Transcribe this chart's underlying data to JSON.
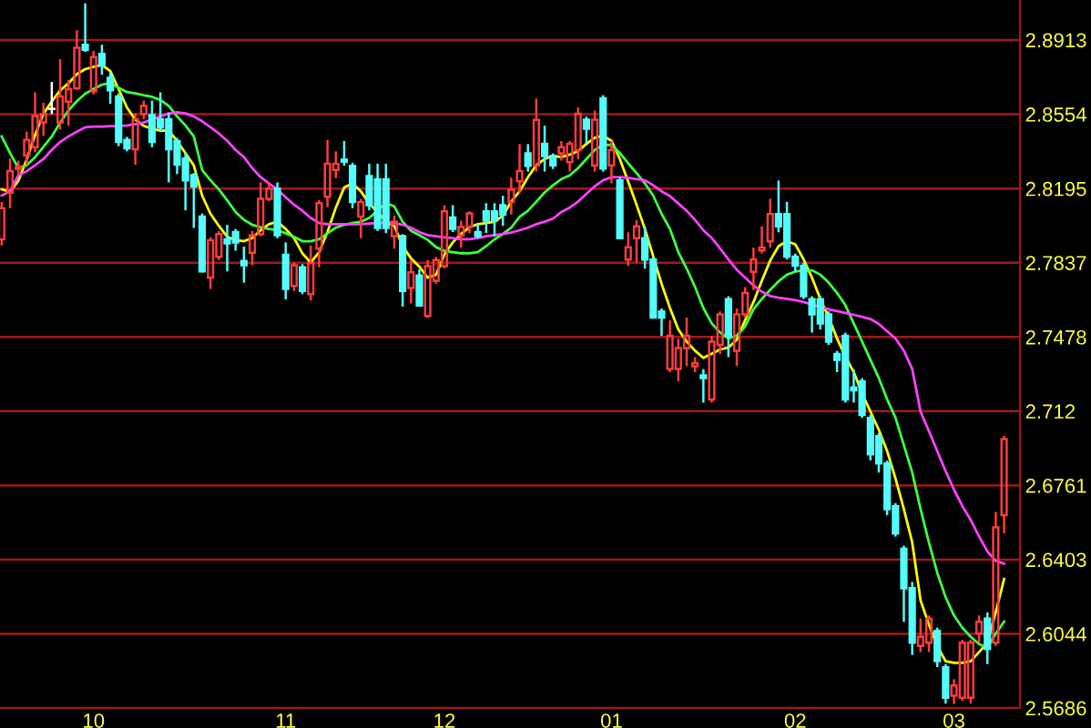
{
  "chart_data": {
    "type": "candlestick",
    "categories": [
      null,
      null,
      null,
      null,
      null,
      null,
      null,
      null,
      null,
      null,
      null,
      "10",
      null,
      null,
      null,
      null,
      null,
      null,
      null,
      null,
      null,
      null,
      null,
      null,
      null,
      null,
      null,
      null,
      null,
      null,
      null,
      null,
      null,
      null,
      "11",
      null,
      null,
      null,
      null,
      null,
      null,
      null,
      null,
      null,
      null,
      null,
      null,
      null,
      null,
      null,
      null,
      null,
      null,
      "12",
      null,
      null,
      null,
      null,
      null,
      null,
      null,
      null,
      null,
      null,
      null,
      null,
      null,
      null,
      null,
      null,
      null,
      null,
      null,
      "01",
      null,
      null,
      null,
      null,
      null,
      null,
      null,
      null,
      null,
      null,
      null,
      null,
      null,
      null,
      null,
      null,
      null,
      null,
      null,
      null,
      null,
      "02",
      null,
      null,
      null,
      null,
      null,
      null,
      null,
      null,
      null,
      null,
      null,
      null,
      null,
      null,
      null,
      null,
      null,
      null,
      "03",
      null,
      null,
      null,
      null,
      null,
      null
    ],
    "ohlc": [
      [
        2.795,
        2.813,
        2.792,
        2.81
      ],
      [
        2.8175,
        2.834,
        2.81,
        2.828
      ],
      [
        2.829,
        2.833,
        2.826,
        2.83
      ],
      [
        2.8355,
        2.847,
        2.831,
        2.843
      ],
      [
        2.8395,
        2.866,
        2.837,
        2.8545
      ],
      [
        2.8515,
        2.861,
        2.845,
        2.8555
      ],
      [
        2.858,
        2.871,
        2.8555,
        2.858
      ],
      [
        2.8515,
        2.882,
        2.848,
        2.864
      ],
      [
        2.8615,
        2.872,
        2.85,
        2.8675
      ],
      [
        2.868,
        2.896,
        2.867,
        2.8875
      ],
      [
        2.889,
        2.909,
        2.8855,
        2.8865
      ],
      [
        2.8665,
        2.886,
        2.865,
        2.883
      ],
      [
        2.8845,
        2.889,
        2.8745,
        2.879
      ],
      [
        2.873,
        2.8755,
        2.8605,
        2.867
      ],
      [
        2.864,
        2.8655,
        2.84,
        2.842
      ],
      [
        2.843,
        2.8445,
        2.8375,
        2.839
      ],
      [
        2.8385,
        2.856,
        2.831,
        2.853
      ],
      [
        2.8555,
        2.862,
        2.853,
        2.8595
      ],
      [
        2.855,
        2.862,
        2.8395,
        2.842
      ],
      [
        2.853,
        2.866,
        2.847,
        2.849
      ],
      [
        2.853,
        2.856,
        2.8225,
        2.8385
      ],
      [
        2.8425,
        2.844,
        2.8265,
        2.831
      ],
      [
        2.834,
        2.837,
        2.809,
        2.8235
      ],
      [
        2.826,
        2.827,
        2.8005,
        2.8205
      ],
      [
        2.806,
        2.8075,
        2.779,
        2.7795
      ],
      [
        2.7765,
        2.796,
        2.771,
        2.7945
      ],
      [
        2.7865,
        2.799,
        2.785,
        2.7975
      ],
      [
        2.795,
        2.802,
        2.7795,
        2.793
      ],
      [
        2.7985,
        2.8,
        2.7895,
        2.7935
      ],
      [
        2.7845,
        2.7915,
        2.774,
        2.7825
      ],
      [
        2.7885,
        2.799,
        2.7825,
        2.797
      ],
      [
        2.7975,
        2.8225,
        2.7965,
        2.8145
      ],
      [
        2.8145,
        2.8225,
        2.8135,
        2.8195
      ],
      [
        2.8195,
        2.8225,
        2.7955,
        2.797
      ],
      [
        2.7875,
        2.7935,
        2.766,
        2.771
      ],
      [
        2.7725,
        2.784,
        2.77,
        2.7825
      ],
      [
        2.7815,
        2.783,
        2.7685,
        2.77
      ],
      [
        2.7685,
        2.792,
        2.7655,
        2.7835
      ],
      [
        2.7905,
        2.814,
        2.7815,
        2.8125
      ],
      [
        2.8155,
        2.843,
        2.8105,
        2.8315
      ],
      [
        2.8285,
        2.8375,
        2.8245,
        2.8315
      ],
      [
        2.8335,
        2.8425,
        2.8305,
        2.8325
      ],
      [
        2.8305,
        2.832,
        2.81,
        2.813
      ],
      [
        2.806,
        2.8145,
        2.7955,
        2.813
      ],
      [
        2.8255,
        2.8315,
        2.809,
        2.8115
      ],
      [
        2.824,
        2.8315,
        2.799,
        2.8005
      ],
      [
        2.824,
        2.8315,
        2.798,
        2.8005
      ],
      [
        2.7965,
        2.8065,
        2.7905,
        2.8035
      ],
      [
        2.7965,
        2.7975,
        2.7625,
        2.77
      ],
      [
        2.7715,
        2.785,
        2.764,
        2.779
      ],
      [
        2.7775,
        2.7805,
        2.763,
        2.763
      ],
      [
        2.758,
        2.785,
        2.757,
        2.782
      ],
      [
        2.775,
        2.7865,
        2.7735,
        2.785
      ],
      [
        2.782,
        2.8115,
        2.781,
        2.8085
      ],
      [
        2.8055,
        2.8115,
        2.7985,
        2.8
      ],
      [
        2.797,
        2.804,
        2.791,
        2.801
      ],
      [
        2.801,
        2.8085,
        2.798,
        2.8075
      ],
      [
        2.7985,
        2.8025,
        2.7955,
        2.7965
      ],
      [
        2.8085,
        2.8125,
        2.798,
        2.804
      ],
      [
        2.8085,
        2.8125,
        2.7965,
        2.804
      ],
      [
        2.8115,
        2.816,
        2.8015,
        2.807
      ],
      [
        2.813,
        2.8248,
        2.807,
        2.819
      ],
      [
        2.823,
        2.841,
        2.8175,
        2.828
      ],
      [
        2.8365,
        2.841,
        2.8277,
        2.8305
      ],
      [
        2.8307,
        2.863,
        2.8277,
        2.8527
      ],
      [
        2.8411,
        2.8499,
        2.8277,
        2.8352
      ],
      [
        2.8352,
        2.8365,
        2.829,
        2.8307
      ],
      [
        2.8365,
        2.8425,
        2.833,
        2.8395
      ],
      [
        2.8322,
        2.8425,
        2.8277,
        2.8411
      ],
      [
        2.8381,
        2.8587,
        2.8337,
        2.8557
      ],
      [
        2.8528,
        2.8543,
        2.8411,
        2.8484
      ],
      [
        2.8307,
        2.8572,
        2.8277,
        2.8528
      ],
      [
        2.8631,
        2.8646,
        2.8277,
        2.8292
      ],
      [
        2.8307,
        2.8425,
        2.8221,
        2.8381
      ],
      [
        2.8234,
        2.8249,
        2.7955,
        2.7955
      ],
      [
        2.7852,
        2.7984,
        2.7822,
        2.7911
      ],
      [
        2.7955,
        2.8043,
        2.7837,
        2.8013
      ],
      [
        2.7955,
        2.8013,
        2.7808,
        2.7852
      ],
      [
        2.7852,
        2.7866,
        2.7572,
        2.7572
      ],
      [
        2.7602,
        2.7616,
        2.7484,
        2.7572
      ],
      [
        2.7324,
        2.7558,
        2.7308,
        2.7484
      ],
      [
        2.7324,
        2.747,
        2.7264,
        2.7425
      ],
      [
        2.7425,
        2.7572,
        2.7337,
        2.7484
      ],
      [
        2.7337,
        2.7381,
        2.7308,
        2.7352
      ],
      [
        2.7293,
        2.7323,
        2.7161,
        2.7279
      ],
      [
        2.7176,
        2.7484,
        2.7161,
        2.7455
      ],
      [
        2.744,
        2.7602,
        2.7396,
        2.7587
      ],
      [
        2.7661,
        2.7675,
        2.7381,
        2.7484
      ],
      [
        2.7411,
        2.7616,
        2.7338,
        2.7587
      ],
      [
        2.7587,
        2.7719,
        2.7572,
        2.769
      ],
      [
        2.7793,
        2.791,
        2.7705,
        2.7852
      ],
      [
        2.7896,
        2.8013,
        2.7881,
        2.791
      ],
      [
        2.794,
        2.8146,
        2.791,
        2.8072
      ],
      [
        2.8072,
        2.8234,
        2.7984,
        2.8013
      ],
      [
        2.8072,
        2.8131,
        2.7852,
        2.7866
      ],
      [
        2.7866,
        2.7881,
        2.7793,
        2.7822
      ],
      [
        2.7822,
        2.7837,
        2.7661,
        2.7675
      ],
      [
        2.7661,
        2.7675,
        2.7499,
        2.7587
      ],
      [
        2.7661,
        2.7675,
        2.7514,
        2.7543
      ],
      [
        2.7587,
        2.7602,
        2.744,
        2.7455
      ],
      [
        2.7396,
        2.7411,
        2.7308,
        2.7367
      ],
      [
        2.7484,
        2.7499,
        2.7161,
        2.7176
      ],
      [
        2.7235,
        2.7323,
        2.7161,
        2.722
      ],
      [
        2.7264,
        2.7279,
        2.7087,
        2.7102
      ],
      [
        2.7087,
        2.7102,
        2.6882,
        2.6911
      ],
      [
        2.6999,
        2.7014,
        2.6823,
        2.6867
      ],
      [
        2.6867,
        2.6881,
        2.6617,
        2.6646
      ],
      [
        2.6661,
        2.6675,
        2.6514,
        2.6529
      ],
      [
        2.6455,
        2.647,
        2.6102,
        2.6264
      ],
      [
        2.6265,
        2.6295,
        2.5942,
        2.6001
      ],
      [
        2.5986,
        2.6118,
        2.5956,
        2.603
      ],
      [
        2.6001,
        2.6133,
        2.5956,
        2.6118
      ],
      [
        2.6059,
        2.6074,
        2.5883,
        2.5912
      ],
      [
        2.5883,
        2.5898,
        2.5707,
        2.5736
      ],
      [
        2.5745,
        2.5825,
        2.5705,
        2.5795
      ],
      [
        2.5736,
        2.6015,
        2.5721,
        2.6001
      ],
      [
        2.5736,
        2.6015,
        2.5707,
        2.6001
      ],
      [
        2.6045,
        2.6133,
        2.6001,
        2.6103
      ],
      [
        2.6118,
        2.6148,
        2.5898,
        2.5971
      ],
      [
        2.6001,
        2.6633,
        2.5986,
        2.6559
      ],
      [
        2.6618,
        2.7,
        2.653,
        2.6985
      ]
    ],
    "colors": [
      "#ff3c3c",
      "#ff3c3c",
      "#ff3c3c",
      "#ff3c3c",
      "#ff3c3c",
      "#ff3c3c",
      "#ffffff",
      "#ff3c3c",
      "#ff3c3c",
      "#ff3c3c",
      "#54fcfc",
      "#ff3c3c",
      "#54fcfc",
      "#54fcfc",
      "#54fcfc",
      "#54fcfc",
      "#ff3c3c",
      "#ff3c3c",
      "#54fcfc",
      "#54fcfc",
      "#54fcfc",
      "#54fcfc",
      "#54fcfc",
      "#54fcfc",
      "#54fcfc",
      "#ff3c3c",
      "#ff3c3c",
      "#54fcfc",
      "#54fcfc",
      "#54fcfc",
      "#ff3c3c",
      "#ff3c3c",
      "#ff3c3c",
      "#54fcfc",
      "#54fcfc",
      "#ff3c3c",
      "#54fcfc",
      "#ff3c3c",
      "#ff3c3c",
      "#ff3c3c",
      "#ff3c3c",
      "#54fcfc",
      "#54fcfc",
      "#ff3c3c",
      "#54fcfc",
      "#54fcfc",
      "#54fcfc",
      "#ff3c3c",
      "#54fcfc",
      "#ff3c3c",
      "#54fcfc",
      "#ff3c3c",
      "#ff3c3c",
      "#ff3c3c",
      "#54fcfc",
      "#ff3c3c",
      "#ff3c3c",
      "#54fcfc",
      "#54fcfc",
      "#54fcfc",
      "#54fcfc",
      "#ff3c3c",
      "#ff3c3c",
      "#54fcfc",
      "#ff3c3c",
      "#54fcfc",
      "#54fcfc",
      "#ff3c3c",
      "#ff3c3c",
      "#ff3c3c",
      "#54fcfc",
      "#ff3c3c",
      "#54fcfc",
      "#ff3c3c",
      "#54fcfc",
      "#ff3c3c",
      "#ff3c3c",
      "#54fcfc",
      "#54fcfc",
      "#54fcfc",
      "#ff3c3c",
      "#ff3c3c",
      "#ff3c3c",
      "#ff3c3c",
      "#54fcfc",
      "#ff3c3c",
      "#ff3c3c",
      "#54fcfc",
      "#ff3c3c",
      "#ff3c3c",
      "#ff3c3c",
      "#ff3c3c",
      "#ff3c3c",
      "#54fcfc",
      "#54fcfc",
      "#54fcfc",
      "#54fcfc",
      "#54fcfc",
      "#54fcfc",
      "#54fcfc",
      "#54fcfc",
      "#54fcfc",
      "#54fcfc",
      "#54fcfc",
      "#54fcfc",
      "#54fcfc",
      "#54fcfc",
      "#54fcfc",
      "#54fcfc",
      "#54fcfc",
      "#ff3c3c",
      "#ff3c3c",
      "#54fcfc",
      "#54fcfc",
      "#ff3c3c",
      "#ff3c3c",
      "#ff3c3c",
      "#ff3c3c",
      "#54fcfc",
      "#ff3c3c",
      "#ff3c3c"
    ],
    "series": [
      {
        "type": "line",
        "color": "#ffff00",
        "values": [
          2.8191,
          2.818,
          2.8233,
          2.8336,
          2.8454,
          2.8557,
          2.8616,
          2.8669,
          2.8704,
          2.8748,
          2.8772,
          2.8783,
          2.8792,
          2.8763,
          2.8675,
          2.8586,
          2.8528,
          2.8498,
          2.8484,
          2.8475,
          2.8475,
          2.8425,
          2.8366,
          2.8307,
          2.8161,
          2.8073,
          2.8015,
          2.7962,
          2.7947,
          2.7941,
          2.7956,
          2.7994,
          2.8023,
          2.8035,
          2.8,
          2.7956,
          2.7882,
          2.7838,
          2.7888,
          2.7985,
          2.8103,
          2.82,
          2.822,
          2.8182,
          2.8123,
          2.8082,
          2.8035,
          2.8015,
          2.7917,
          2.7858,
          2.7818,
          2.7765,
          2.7779,
          2.7876,
          2.7935,
          2.7976,
          2.8009,
          2.8023,
          2.8029,
          2.8035,
          2.8064,
          2.8132,
          2.8182,
          2.825,
          2.8308,
          2.8338,
          2.8353,
          2.8347,
          2.8359,
          2.8376,
          2.8411,
          2.8441,
          2.845,
          2.8426,
          2.8338,
          2.8229,
          2.8117,
          2.8,
          2.7868,
          2.7735,
          2.7618,
          2.7515,
          2.7456,
          2.7412,
          2.7377,
          2.7397,
          2.7418,
          2.7427,
          2.7465,
          2.7559,
          2.7647,
          2.775,
          2.7847,
          2.7917,
          2.7941,
          2.7926,
          2.7853,
          2.7765,
          2.7662,
          2.7574,
          2.7471,
          2.7383,
          2.7309,
          2.7206,
          2.7118,
          2.703,
          2.6927,
          2.6794,
          2.6647,
          2.6486,
          2.6206,
          2.6089,
          2.5986,
          2.5912,
          2.5904,
          2.5904,
          2.5912,
          2.5956,
          2.6001,
          2.6148,
          2.6309
        ]
      },
      {
        "type": "line",
        "color": "#40ff40",
        "values": [
          2.8447,
          2.8367,
          2.8294,
          2.8308,
          2.8347,
          2.8397,
          2.8447,
          2.8514,
          2.8573,
          2.8617,
          2.8653,
          2.8676,
          2.8697,
          2.8705,
          2.8682,
          2.8661,
          2.8655,
          2.8646,
          2.8638,
          2.8623,
          2.8594,
          2.8544,
          2.85,
          2.8447,
          2.8285,
          2.8235,
          2.8191,
          2.8138,
          2.8082,
          2.8044,
          2.802,
          2.8009,
          2.8,
          2.7994,
          2.7979,
          2.7962,
          2.7941,
          2.7941,
          2.795,
          2.7979,
          2.8006,
          2.802,
          2.8029,
          2.8035,
          2.8053,
          2.8088,
          2.8126,
          2.8109,
          2.8035,
          2.7991,
          2.797,
          2.7947,
          2.7912,
          2.7894,
          2.7888,
          2.7882,
          2.7882,
          2.7888,
          2.7917,
          2.795,
          2.7976,
          2.8006,
          2.8059,
          2.8088,
          2.8132,
          2.8176,
          2.8211,
          2.8241,
          2.8259,
          2.8294,
          2.8338,
          2.8382,
          2.8406,
          2.8406,
          2.8367,
          2.8317,
          2.827,
          2.822,
          2.8161,
          2.8073,
          2.8,
          2.7888,
          2.7809,
          2.772,
          2.7618,
          2.7544,
          2.75,
          2.7471,
          2.7485,
          2.7529,
          2.7612,
          2.7662,
          2.7706,
          2.7747,
          2.7779,
          2.7794,
          2.78,
          2.78,
          2.7779,
          2.7741,
          2.7691,
          2.7632,
          2.7544,
          2.7456,
          2.7368,
          2.728,
          2.7177,
          2.7088,
          2.6956,
          2.6824,
          2.6647,
          2.6486,
          2.6339,
          2.6221,
          2.6133,
          2.6074,
          2.603,
          2.5995,
          2.5977,
          2.6045,
          2.6103
        ]
      },
      {
        "type": "line",
        "color": "#ff40ff",
        "values": [
          2.8161,
          2.8182,
          2.8259,
          2.8279,
          2.8308,
          2.8338,
          2.8382,
          2.842,
          2.8447,
          2.847,
          2.8491,
          2.8494,
          2.8494,
          2.8497,
          2.8497,
          2.85,
          2.8506,
          2.8514,
          2.8529,
          2.8544,
          2.8558,
          2.8564,
          2.8558,
          2.8544,
          2.852,
          2.8491,
          2.8461,
          2.8426,
          2.8382,
          2.8347,
          2.8294,
          2.825,
          2.822,
          2.8191,
          2.8153,
          2.8117,
          2.8088,
          2.8053,
          2.8029,
          2.8023,
          2.8023,
          2.8023,
          2.8023,
          2.8023,
          2.8026,
          2.8029,
          2.8029,
          2.8029,
          2.802,
          2.8006,
          2.7985,
          2.797,
          2.7965,
          2.7959,
          2.7956,
          2.795,
          2.795,
          2.7956,
          2.7965,
          2.797,
          2.7976,
          2.7982,
          2.7994,
          2.8006,
          2.8023,
          2.8035,
          2.805,
          2.8082,
          2.8103,
          2.8132,
          2.817,
          2.8206,
          2.8235,
          2.825,
          2.825,
          2.8247,
          2.8241,
          2.8235,
          2.8211,
          2.8182,
          2.8159,
          2.8123,
          2.8088,
          2.8044,
          2.7994,
          2.7956,
          2.7906,
          2.7853,
          2.7803,
          2.7765,
          2.7727,
          2.7697,
          2.7676,
          2.7668,
          2.7662,
          2.7656,
          2.7647,
          2.7635,
          2.7624,
          2.7612,
          2.7603,
          2.7594,
          2.7585,
          2.7576,
          2.7565,
          2.7541,
          2.7506,
          2.7471,
          2.7412,
          2.7324,
          2.7118,
          2.7024,
          2.6927,
          2.683,
          2.6741,
          2.6662,
          2.6594,
          2.6515,
          2.6442,
          2.6397,
          2.6383
        ]
      }
    ],
    "ylim": [
      2.5686,
      2.9106
    ],
    "yticks": [
      2.5686,
      2.6044,
      2.6403,
      2.6761,
      2.712,
      2.7478,
      2.7837,
      2.8195,
      2.8554,
      2.8913
    ],
    "grid": "y"
  }
}
